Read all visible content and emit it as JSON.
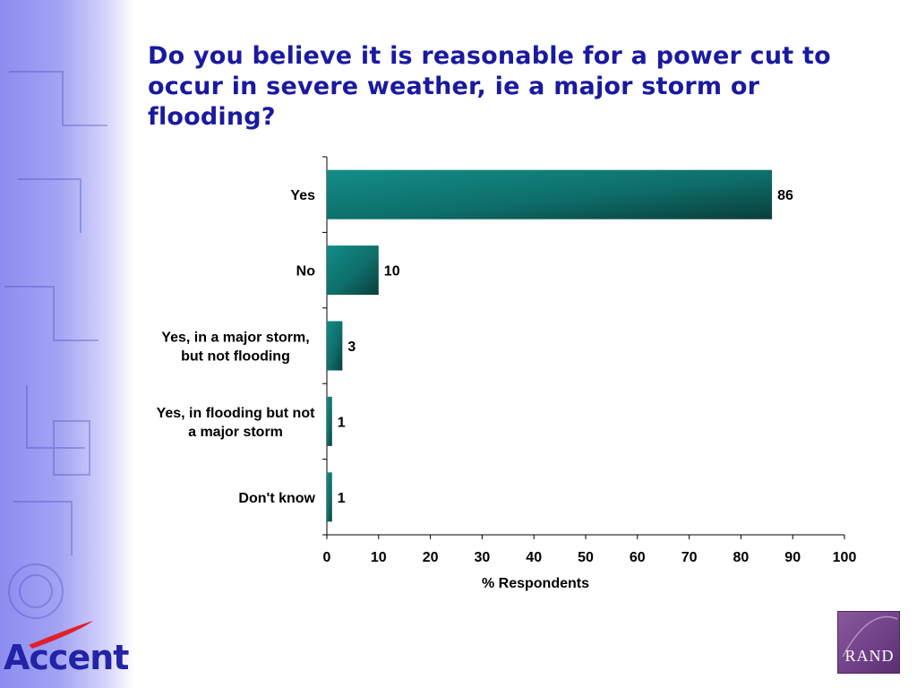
{
  "slide": {
    "title": "Do you believe it is reasonable for a power cut to occur in severe weather, ie a major storm or flooding?",
    "logo_accent": "Accent",
    "logo_rand": "RAND"
  },
  "colors": {
    "title": "#1a1aa0",
    "bar_light": "#0f8a86",
    "bar_dark": "#0b3f3c",
    "logo_accent_swoosh": "#e0202a",
    "logo_accent_text": "#2323a8"
  },
  "chart_data": {
    "type": "bar",
    "orientation": "horizontal",
    "categories": [
      [
        "Yes"
      ],
      [
        "No"
      ],
      [
        "Yes, in a major storm,",
        "but not flooding"
      ],
      [
        "Yes, in flooding but not",
        "a major storm"
      ],
      [
        "Don't know"
      ]
    ],
    "values": [
      86,
      10,
      3,
      1,
      1
    ],
    "xlabel": "% Respondents",
    "xlim": [
      0,
      100
    ],
    "xticks": [
      0,
      10,
      20,
      30,
      40,
      50,
      60,
      70,
      80,
      90,
      100
    ],
    "grid": false,
    "legend": "none"
  }
}
